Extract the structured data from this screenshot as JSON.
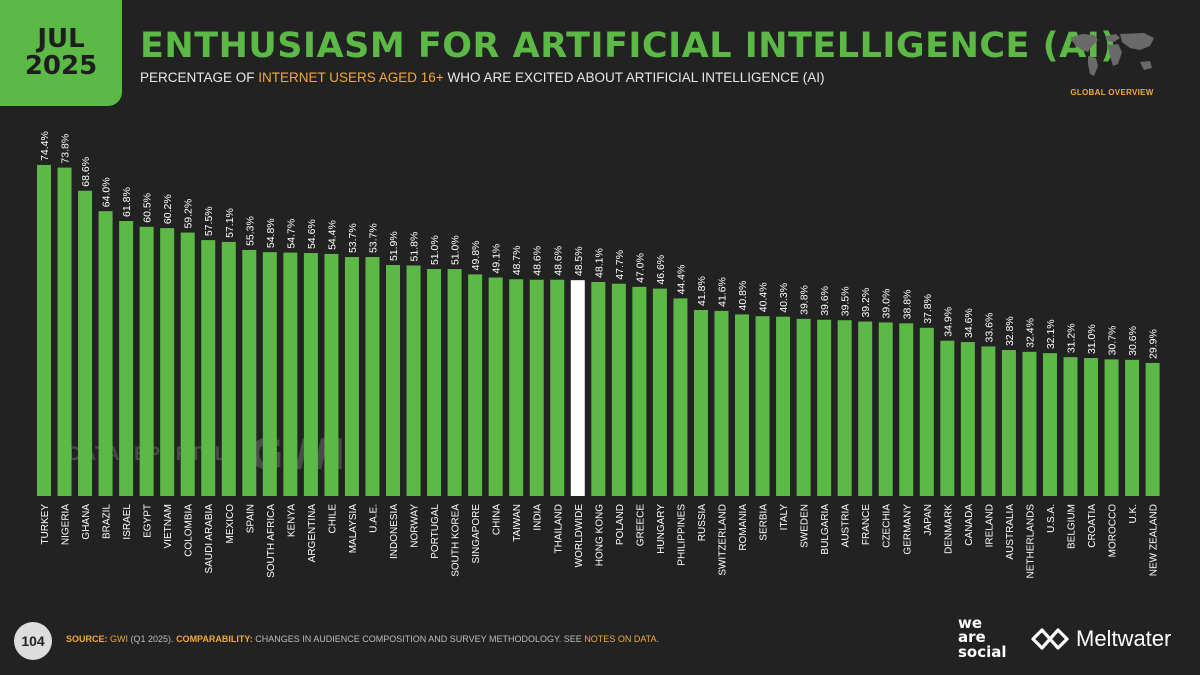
{
  "header": {
    "date_month": "JUL",
    "date_year": "2025",
    "title": "ENTHUSIASM FOR ARTIFICIAL INTELLIGENCE (AI)",
    "subtitle_pre": "PERCENTAGE OF ",
    "subtitle_highlight": "INTERNET USERS AGED 16+",
    "subtitle_post": " WHO ARE EXCITED ABOUT ARTIFICIAL INTELLIGENCE (AI)",
    "map_label": "GLOBAL OVERVIEW"
  },
  "watermark": {
    "datareportal": "DATAREPORTAL",
    "gwi": "GWI."
  },
  "footer": {
    "page_number": "104",
    "source_label": "SOURCE:",
    "source_name": "GWI",
    "source_detail": " (Q1 2025). ",
    "comparability_label": "COMPARABILITY:",
    "comparability_text": " CHANGES IN AUDIENCE COMPOSITION AND SURVEY METHODOLOGY. SEE ",
    "notes_link": "NOTES ON DATA",
    "end": "."
  },
  "brands": {
    "was_line1": "we",
    "was_line2": "are",
    "was_line3": "social",
    "meltwater": "Meltwater"
  },
  "colors": {
    "accent_green": "#5cb946",
    "bar_green": "#5cb946",
    "highlight_bar": "#ffffff",
    "orange": "#f2a93b",
    "background": "#222222"
  },
  "chart_data": {
    "type": "bar",
    "title": "ENTHUSIASM FOR ARTIFICIAL INTELLIGENCE (AI)",
    "xlabel": "",
    "ylabel": "",
    "ylim": [
      0,
      80
    ],
    "highlight_category": "WORLDWIDE",
    "categories": [
      "TURKEY",
      "NIGERIA",
      "GHANA",
      "BRAZIL",
      "ISRAEL",
      "EGYPT",
      "VIETNAM",
      "COLOMBIA",
      "SAUDI ARABIA",
      "MEXICO",
      "SPAIN",
      "SOUTH AFRICA",
      "KENYA",
      "ARGENTINA",
      "CHILE",
      "MALAYSIA",
      "U.A.E.",
      "INDONESIA",
      "NORWAY",
      "PORTUGAL",
      "SOUTH KOREA",
      "SINGAPORE",
      "CHINA",
      "TAIWAN",
      "INDIA",
      "THAILAND",
      "WORLDWIDE",
      "HONG KONG",
      "POLAND",
      "GREECE",
      "HUNGARY",
      "PHILIPPINES",
      "RUSSIA",
      "SWITZERLAND",
      "ROMANIA",
      "SERBIA",
      "ITALY",
      "SWEDEN",
      "BULGARIA",
      "AUSTRIA",
      "FRANCE",
      "CZECHIA",
      "GERMANY",
      "JAPAN",
      "DENMARK",
      "CANADA",
      "IRELAND",
      "AUSTRALIA",
      "NETHERLANDS",
      "U.S.A.",
      "BELGIUM",
      "CROATIA",
      "MOROCCO",
      "U.K.",
      "NEW ZEALAND"
    ],
    "values": [
      74.4,
      73.8,
      68.6,
      64.0,
      61.8,
      60.5,
      60.2,
      59.2,
      57.5,
      57.1,
      55.3,
      54.8,
      54.7,
      54.6,
      54.4,
      53.7,
      53.7,
      51.9,
      51.8,
      51.0,
      51.0,
      49.8,
      49.1,
      48.7,
      48.6,
      48.6,
      48.5,
      48.1,
      47.7,
      47.0,
      46.6,
      44.4,
      41.8,
      41.6,
      40.8,
      40.4,
      40.3,
      39.8,
      39.6,
      39.5,
      39.2,
      39.0,
      38.8,
      37.8,
      34.9,
      34.6,
      33.6,
      32.8,
      32.4,
      32.1,
      31.2,
      31.0,
      30.7,
      30.6,
      29.9
    ],
    "value_labels": [
      "74.4%",
      "73.8%",
      "68.6%",
      "64.0%",
      "61.8%",
      "60.5%",
      "60.2%",
      "59.2%",
      "57.5%",
      "57.1%",
      "55.3%",
      "54.8%",
      "54.7%",
      "54.6%",
      "54.4%",
      "53.7%",
      "53.7%",
      "51.9%",
      "51.8%",
      "51.0%",
      "51.0%",
      "49.8%",
      "49.1%",
      "48.7%",
      "48.6%",
      "48.6%",
      "48.5%",
      "48.1%",
      "47.7%",
      "47.0%",
      "46.6%",
      "44.4%",
      "41.8%",
      "41.6%",
      "40.8%",
      "40.4%",
      "40.3%",
      "39.8%",
      "39.6%",
      "39.5%",
      "39.2%",
      "39.0%",
      "38.8%",
      "37.8%",
      "34.9%",
      "34.6%",
      "33.6%",
      "32.8%",
      "32.4%",
      "32.1%",
      "31.2%",
      "31.0%",
      "30.7%",
      "30.6%",
      "29.9%"
    ]
  }
}
